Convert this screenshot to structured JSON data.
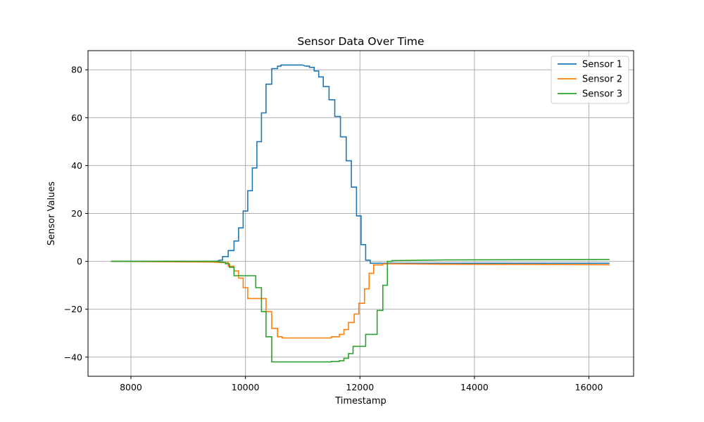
{
  "chart_data": {
    "type": "line",
    "title": "Sensor Data Over Time",
    "xlabel": "Timestamp",
    "ylabel": "Sensor Values",
    "xlim": [
      7250,
      16780
    ],
    "ylim": [
      -48,
      88
    ],
    "xticks": [
      8000,
      10000,
      12000,
      14000,
      16000
    ],
    "yticks": [
      -40,
      -20,
      0,
      20,
      40,
      60,
      80
    ],
    "grid": true,
    "legend_position": "top-right",
    "series": [
      {
        "name": "Sensor 1",
        "color": "#1f77b4",
        "points": [
          [
            7650,
            0
          ],
          [
            9500,
            0
          ],
          [
            9550,
            0.5
          ],
          [
            9600,
            0.5
          ],
          [
            9600,
            2
          ],
          [
            9700,
            2
          ],
          [
            9700,
            4.5
          ],
          [
            9800,
            4.5
          ],
          [
            9800,
            8.5
          ],
          [
            9880,
            8.5
          ],
          [
            9880,
            14
          ],
          [
            9960,
            14
          ],
          [
            9960,
            21
          ],
          [
            10040,
            21
          ],
          [
            10040,
            29.5
          ],
          [
            10120,
            29.5
          ],
          [
            10120,
            39
          ],
          [
            10200,
            39
          ],
          [
            10200,
            50
          ],
          [
            10280,
            50
          ],
          [
            10280,
            62
          ],
          [
            10360,
            62
          ],
          [
            10360,
            74
          ],
          [
            10460,
            74
          ],
          [
            10460,
            80.5
          ],
          [
            10560,
            80.5
          ],
          [
            10560,
            81.5
          ],
          [
            10620,
            81.5
          ],
          [
            10620,
            82
          ],
          [
            11000,
            82
          ],
          [
            11050,
            81.5
          ],
          [
            11120,
            81.5
          ],
          [
            11120,
            81
          ],
          [
            11200,
            81
          ],
          [
            11200,
            79.5
          ],
          [
            11280,
            79.5
          ],
          [
            11280,
            77
          ],
          [
            11360,
            77
          ],
          [
            11360,
            73
          ],
          [
            11460,
            73
          ],
          [
            11460,
            67.5
          ],
          [
            11560,
            67.5
          ],
          [
            11560,
            60.5
          ],
          [
            11660,
            60.5
          ],
          [
            11660,
            52
          ],
          [
            11760,
            52
          ],
          [
            11760,
            42
          ],
          [
            11850,
            42
          ],
          [
            11850,
            31
          ],
          [
            11940,
            31
          ],
          [
            11940,
            19
          ],
          [
            12020,
            19
          ],
          [
            12020,
            7
          ],
          [
            12100,
            7
          ],
          [
            12100,
            0.5
          ],
          [
            12180,
            0.5
          ],
          [
            12180,
            -0.8
          ],
          [
            12300,
            -0.8
          ],
          [
            16360,
            -0.8
          ]
        ]
      },
      {
        "name": "Sensor 2",
        "color": "#ff7f0e",
        "points": [
          [
            7650,
            0
          ],
          [
            9400,
            -0.3
          ],
          [
            9600,
            -0.5
          ],
          [
            9700,
            -0.5
          ],
          [
            9700,
            -2
          ],
          [
            9800,
            -2
          ],
          [
            9800,
            -4
          ],
          [
            9880,
            -4
          ],
          [
            9880,
            -7
          ],
          [
            9960,
            -7
          ],
          [
            9960,
            -11
          ],
          [
            10040,
            -11
          ],
          [
            10040,
            -15.5
          ],
          [
            10360,
            -15.5
          ],
          [
            10360,
            -21
          ],
          [
            10460,
            -21
          ],
          [
            10460,
            -28
          ],
          [
            10560,
            -28
          ],
          [
            10560,
            -31.5
          ],
          [
            10640,
            -31.5
          ],
          [
            10640,
            -32
          ],
          [
            11500,
            -32
          ],
          [
            11500,
            -31.5
          ],
          [
            11640,
            -31.5
          ],
          [
            11640,
            -30.5
          ],
          [
            11720,
            -30.5
          ],
          [
            11720,
            -28.5
          ],
          [
            11800,
            -28.5
          ],
          [
            11800,
            -25.5
          ],
          [
            11900,
            -25.5
          ],
          [
            11900,
            -22
          ],
          [
            11980,
            -22
          ],
          [
            11980,
            -17.5
          ],
          [
            12080,
            -17.5
          ],
          [
            12080,
            -11.5
          ],
          [
            12160,
            -11.5
          ],
          [
            12160,
            -5
          ],
          [
            12240,
            -5
          ],
          [
            12240,
            -1.5
          ],
          [
            12400,
            -1.5
          ],
          [
            12400,
            -1
          ],
          [
            13500,
            -1.2
          ],
          [
            16360,
            -1.4
          ]
        ]
      },
      {
        "name": "Sensor 3",
        "color": "#2ca02c",
        "points": [
          [
            7650,
            0
          ],
          [
            9500,
            0
          ],
          [
            9650,
            -0.5
          ],
          [
            9650,
            -1
          ],
          [
            9720,
            -1
          ],
          [
            9720,
            -2.5
          ],
          [
            9800,
            -2.5
          ],
          [
            9800,
            -6
          ],
          [
            10180,
            -6
          ],
          [
            10180,
            -11
          ],
          [
            10280,
            -11
          ],
          [
            10280,
            -21
          ],
          [
            10360,
            -21
          ],
          [
            10360,
            -31.5
          ],
          [
            10460,
            -31.5
          ],
          [
            10460,
            -42
          ],
          [
            11500,
            -42
          ],
          [
            11500,
            -41.8
          ],
          [
            11640,
            -41.8
          ],
          [
            11640,
            -41.5
          ],
          [
            11720,
            -41.5
          ],
          [
            11720,
            -40.5
          ],
          [
            11800,
            -40.5
          ],
          [
            11800,
            -38.5
          ],
          [
            11880,
            -38.5
          ],
          [
            11880,
            -35.5
          ],
          [
            12100,
            -35.5
          ],
          [
            12100,
            -30.5
          ],
          [
            12300,
            -30.5
          ],
          [
            12300,
            -20.5
          ],
          [
            12400,
            -20.5
          ],
          [
            12400,
            -10
          ],
          [
            12480,
            -10
          ],
          [
            12480,
            0
          ],
          [
            12560,
            0
          ],
          [
            12560,
            0.3
          ],
          [
            13500,
            0.6
          ],
          [
            16360,
            0.8
          ]
        ]
      }
    ]
  }
}
